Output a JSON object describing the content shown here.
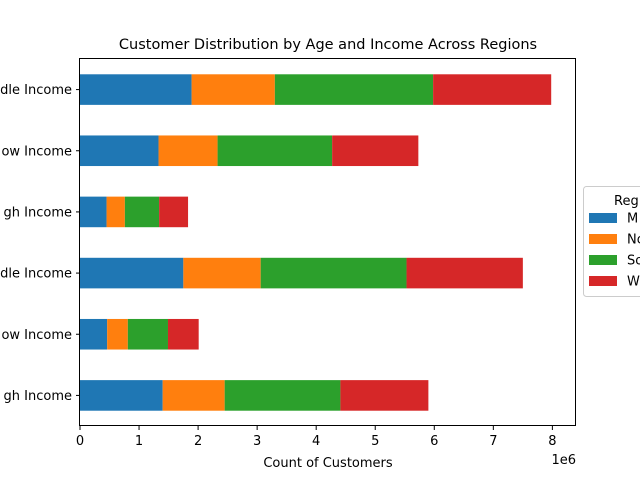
{
  "chart_data": {
    "type": "bar",
    "orientation": "horizontal",
    "stacked": true,
    "title": "Customer Distribution by Age and Income Across Regions",
    "xlabel": "Count of Customers",
    "ylabel": "",
    "x_offset_label": "1e6",
    "xlim": [
      0,
      8400000
    ],
    "xticks": [
      0,
      1,
      2,
      3,
      4,
      5,
      6,
      7,
      8
    ],
    "categories": [
      "dle Income",
      "ow Income",
      "gh Income",
      "dle Income",
      "ow Income",
      "gh Income"
    ],
    "legend_title": "Reg",
    "legend_position": "right",
    "series": [
      {
        "name": "M",
        "color": "#1f77b4",
        "values": [
          1890000,
          1330000,
          450000,
          1750000,
          460000,
          1400000
        ]
      },
      {
        "name": "No",
        "color": "#ff7f0e",
        "values": [
          1410000,
          1000000,
          310000,
          1310000,
          350000,
          1050000
        ]
      },
      {
        "name": "So",
        "color": "#2ca02c",
        "values": [
          2680000,
          1940000,
          580000,
          2470000,
          680000,
          1960000
        ]
      },
      {
        "name": "W",
        "color": "#d62728",
        "values": [
          2000000,
          1460000,
          490000,
          1970000,
          520000,
          1490000
        ]
      }
    ]
  }
}
